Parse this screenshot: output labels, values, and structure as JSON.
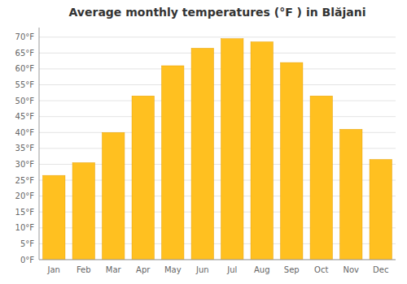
{
  "chart_data": {
    "type": "bar",
    "title": "Average monthly temperatures (°F ) in Blăjani",
    "categories": [
      "Jan",
      "Feb",
      "Mar",
      "Apr",
      "May",
      "Jun",
      "Jul",
      "Aug",
      "Sep",
      "Oct",
      "Nov",
      "Dec"
    ],
    "values": [
      26.5,
      30.5,
      40.0,
      51.5,
      61.0,
      66.5,
      69.5,
      68.5,
      62.0,
      51.5,
      41.0,
      31.5
    ],
    "color": "#FFC020",
    "ylim": [
      0,
      73
    ],
    "yticks": [
      {
        "value": 0,
        "label": "0°F"
      },
      {
        "value": 5,
        "label": "5°F"
      },
      {
        "value": 10,
        "label": "10°F"
      },
      {
        "value": 15,
        "label": "15°F"
      },
      {
        "value": 20,
        "label": "20°F"
      },
      {
        "value": 25,
        "label": "25°F"
      },
      {
        "value": 30,
        "label": "30°F"
      },
      {
        "value": 35,
        "label": "35°F"
      },
      {
        "value": 40,
        "label": "40°F"
      },
      {
        "value": 45,
        "label": "45°F"
      },
      {
        "value": 50,
        "label": "50°F"
      },
      {
        "value": 55,
        "label": "55°F"
      },
      {
        "value": 60,
        "label": "60°F"
      },
      {
        "value": 65,
        "label": "65°F"
      },
      {
        "value": 70,
        "label": "70°F"
      }
    ],
    "grid": true
  }
}
